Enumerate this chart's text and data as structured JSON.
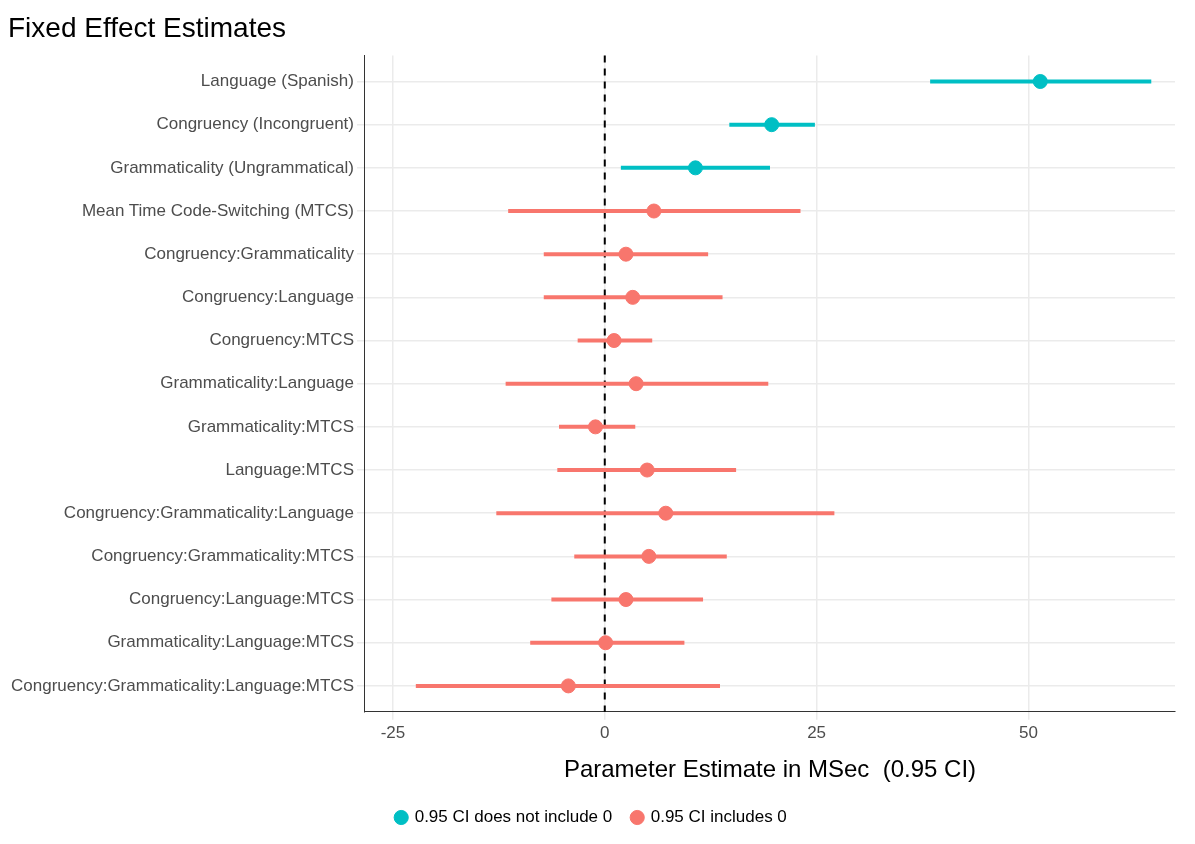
{
  "chart_data": {
    "type": "scatter",
    "orientation": "horizontal",
    "title": "Fixed Effect Estimates",
    "xlabel": "Parameter Estimate in MSec  (0.95 CI)",
    "categories": [
      "Language (Spanish)",
      "Congruency (Incongruent)",
      "Grammaticality (Ungrammatical)",
      "Mean Time Code-Switching (MTCS)",
      "Congruency:Grammaticality",
      "Congruency:Language",
      "Congruency:MTCS",
      "Grammaticality:Language",
      "Grammaticality:MTCS",
      "Language:MTCS",
      "Congruency:Grammaticality:Language",
      "Congruency:Grammaticality:MTCS",
      "Congruency:Language:MTCS",
      "Grammaticality:Language:MTCS",
      "Congruency:Grammaticality:Language:MTCS"
    ],
    "series": [
      {
        "name": "0.95 CI does not include 0",
        "color": "#00bfc4",
        "values": [
          51.4,
          19.7,
          10.7,
          null,
          null,
          null,
          null,
          null,
          null,
          null,
          null,
          null,
          null,
          null,
          null
        ],
        "errors": [
          [
            38.4,
            64.5
          ],
          [
            14.7,
            24.8
          ],
          [
            1.9,
            19.5
          ],
          null,
          null,
          null,
          null,
          null,
          null,
          null,
          null,
          null,
          null,
          null,
          null
        ]
      },
      {
        "name": "0.95 CI includes 0",
        "color": "#f8766d",
        "values": [
          null,
          null,
          null,
          5.8,
          2.5,
          3.3,
          1.1,
          3.7,
          -1.1,
          5.0,
          7.2,
          5.2,
          2.5,
          0.1,
          -4.3
        ],
        "errors": [
          null,
          null,
          null,
          [
            -11.4,
            23.1
          ],
          [
            -7.2,
            12.2
          ],
          [
            -7.2,
            13.9
          ],
          [
            -3.2,
            5.6
          ],
          [
            -11.7,
            19.3
          ],
          [
            -5.4,
            3.6
          ],
          [
            -5.6,
            15.5
          ],
          [
            -12.8,
            27.1
          ],
          [
            -3.6,
            14.4
          ],
          [
            -6.3,
            11.6
          ],
          [
            -8.8,
            9.4
          ],
          [
            -22.3,
            13.6
          ]
        ]
      }
    ],
    "xlim": [
      -28.3,
      67.3
    ],
    "xticks": [
      -25,
      0,
      25,
      50
    ],
    "ref_lines": [
      {
        "axis": "x",
        "value": 0,
        "color": "#000000",
        "line_style": "dashed"
      }
    ],
    "grid": true,
    "legend": "bottom",
    "marker": "circle"
  }
}
